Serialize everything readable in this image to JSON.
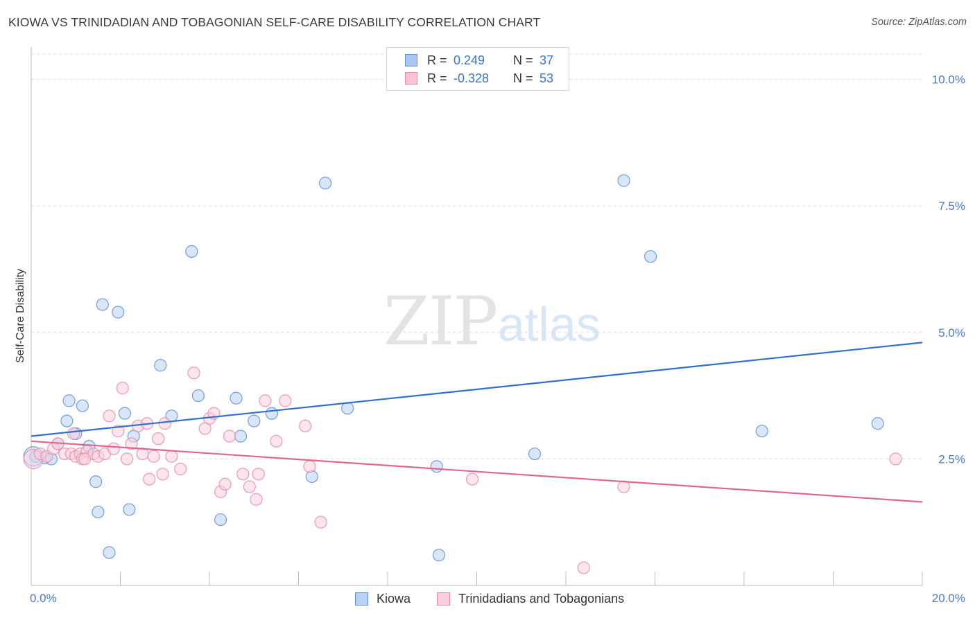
{
  "title": "KIOWA VS TRINIDADIAN AND TOBAGONIAN SELF-CARE DISABILITY CORRELATION CHART",
  "source": "Source: ZipAtlas.com",
  "watermark": {
    "zip": "ZIP",
    "atlas": "atlas"
  },
  "legend": {
    "rows": [
      {
        "r_label": "R =",
        "r_value": "0.249",
        "n_label": "N =",
        "n_value": "37",
        "color": "#a9c6f0",
        "border": "#5b8fd6"
      },
      {
        "r_label": "R =",
        "r_value": "-0.328",
        "n_label": "N =",
        "n_value": "53",
        "color": "#f8c3d3",
        "border": "#e98aa8"
      }
    ]
  },
  "bottom_legend": [
    {
      "label": "Kiowa",
      "color": "#b9d2f3",
      "border": "#5b8fd6"
    },
    {
      "label": "Trinidadians and Tobagonians",
      "color": "#f9cfdc",
      "border": "#e98aa8"
    }
  ],
  "chart_data": {
    "type": "scatter",
    "title": "KIOWA VS TRINIDADIAN AND TOBAGONIAN SELF-CARE DISABILITY CORRELATION CHART",
    "ylabel": "Self-Care Disability",
    "xlabel": "",
    "xlim": [
      0,
      20
    ],
    "ylim": [
      0,
      10.5
    ],
    "x_tick_labels": [
      "0.0%",
      "20.0%"
    ],
    "y_ticks": [
      2.5,
      5.0,
      7.5,
      10.0
    ],
    "y_tick_labels": [
      "2.5%",
      "5.0%",
      "7.5%",
      "10.0%"
    ],
    "grid": true,
    "series": [
      {
        "name": "Kiowa",
        "color": "#5b8fd6",
        "fill": "#b9d2f3",
        "trend": {
          "x": [
            0,
            20
          ],
          "y": [
            2.95,
            4.8
          ],
          "color": "#2f6fd0"
        },
        "points": [
          [
            0.1,
            2.55
          ],
          [
            0.3,
            2.52
          ],
          [
            0.45,
            2.5
          ],
          [
            0.6,
            2.8
          ],
          [
            0.8,
            3.25
          ],
          [
            0.85,
            3.65
          ],
          [
            1.0,
            3.0
          ],
          [
            1.15,
            3.55
          ],
          [
            1.3,
            2.75
          ],
          [
            1.45,
            2.05
          ],
          [
            1.5,
            1.45
          ],
          [
            1.6,
            5.55
          ],
          [
            1.75,
            0.65
          ],
          [
            1.95,
            5.4
          ],
          [
            2.1,
            3.4
          ],
          [
            2.2,
            1.5
          ],
          [
            2.3,
            2.95
          ],
          [
            2.9,
            4.35
          ],
          [
            3.15,
            3.35
          ],
          [
            3.6,
            6.6
          ],
          [
            3.75,
            3.75
          ],
          [
            4.25,
            1.3
          ],
          [
            4.6,
            3.7
          ],
          [
            4.7,
            2.95
          ],
          [
            5.0,
            3.25
          ],
          [
            5.4,
            3.4
          ],
          [
            6.3,
            2.15
          ],
          [
            6.6,
            7.95
          ],
          [
            7.1,
            3.5
          ],
          [
            9.1,
            2.35
          ],
          [
            9.15,
            0.6
          ],
          [
            11.3,
            2.6
          ],
          [
            13.3,
            8.0
          ],
          [
            13.9,
            6.5
          ],
          [
            16.4,
            3.05
          ],
          [
            19.0,
            3.2
          ],
          [
            0.05,
            2.55
          ]
        ]
      },
      {
        "name": "Trinidadians and Tobagonians",
        "color": "#e98aa8",
        "fill": "#f9cfdc",
        "trend": {
          "x": [
            0,
            20
          ],
          "y": [
            2.85,
            1.65
          ],
          "color": "#e0668e"
        },
        "points": [
          [
            0.05,
            2.5
          ],
          [
            0.2,
            2.6
          ],
          [
            0.35,
            2.55
          ],
          [
            0.5,
            2.7
          ],
          [
            0.6,
            2.8
          ],
          [
            0.75,
            2.6
          ],
          [
            0.9,
            2.6
          ],
          [
            1.0,
            2.55
          ],
          [
            1.1,
            2.6
          ],
          [
            1.15,
            2.5
          ],
          [
            1.25,
            2.65
          ],
          [
            1.4,
            2.6
          ],
          [
            1.5,
            2.55
          ],
          [
            1.65,
            2.6
          ],
          [
            1.75,
            3.35
          ],
          [
            1.85,
            2.7
          ],
          [
            1.95,
            3.05
          ],
          [
            2.05,
            3.9
          ],
          [
            2.15,
            2.5
          ],
          [
            2.25,
            2.8
          ],
          [
            2.4,
            3.15
          ],
          [
            2.5,
            2.6
          ],
          [
            2.6,
            3.2
          ],
          [
            2.65,
            2.1
          ],
          [
            2.85,
            2.9
          ],
          [
            2.95,
            2.2
          ],
          [
            3.15,
            2.55
          ],
          [
            3.35,
            2.3
          ],
          [
            3.65,
            4.2
          ],
          [
            3.9,
            3.1
          ],
          [
            4.0,
            3.3
          ],
          [
            4.1,
            3.4
          ],
          [
            4.25,
            1.85
          ],
          [
            4.35,
            2.0
          ],
          [
            4.45,
            2.95
          ],
          [
            4.75,
            2.2
          ],
          [
            4.9,
            1.95
          ],
          [
            5.05,
            1.7
          ],
          [
            5.1,
            2.2
          ],
          [
            5.25,
            3.65
          ],
          [
            5.5,
            2.85
          ],
          [
            5.7,
            3.65
          ],
          [
            6.15,
            3.15
          ],
          [
            6.25,
            2.35
          ],
          [
            6.5,
            1.25
          ],
          [
            9.9,
            2.1
          ],
          [
            13.3,
            1.95
          ],
          [
            12.4,
            0.35
          ],
          [
            19.4,
            2.5
          ],
          [
            1.2,
            2.5
          ],
          [
            0.95,
            3.0
          ],
          [
            2.75,
            2.55
          ],
          [
            3.0,
            3.2
          ]
        ]
      }
    ]
  }
}
